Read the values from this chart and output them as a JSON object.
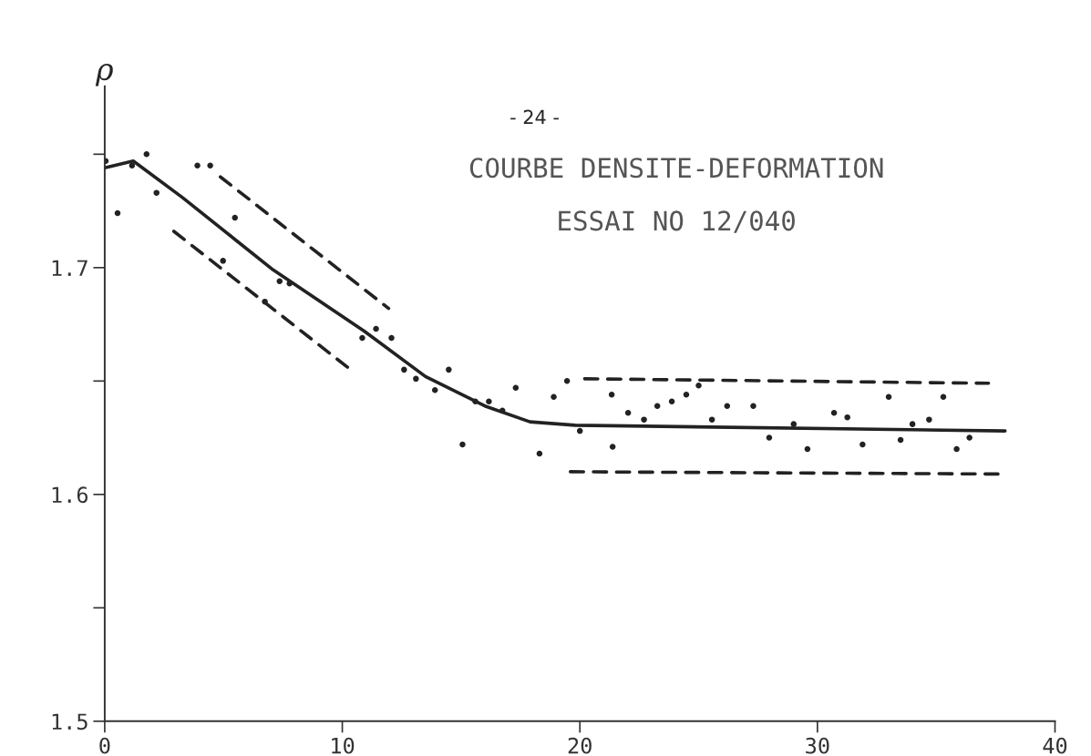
{
  "chart_data": {
    "type": "scatter",
    "title": "COURBE DENSITE-DEFORMATION",
    "subtitle": "ESSAI NO 12/040",
    "ylabel": "ρ",
    "annotations": [
      "- 24 -"
    ],
    "xlim": [
      0,
      40
    ],
    "xticks": [
      0,
      10,
      20,
      30,
      40
    ],
    "ylim": [
      1.5,
      1.78
    ],
    "yticks": [
      1.5,
      {
        "value": 1.55,
        "label": null
      },
      1.6,
      {
        "value": 1.65,
        "label": null
      },
      1.7,
      {
        "value": 1.75,
        "label": null
      }
    ],
    "grid": false,
    "legend": false,
    "series": [
      {
        "color": "#222222",
        "marker": "circle",
        "x": [
          0.04,
          0.54,
          1.15,
          1.76,
          2.18,
          3.9,
          4.44,
          5.48,
          4.98,
          7.36,
          7.78,
          6.74,
          10.84,
          11.42,
          12.07,
          12.6,
          13.1,
          13.9,
          14.48,
          15.6,
          16.17,
          16.74,
          17.3,
          15.06,
          18.3,
          18.9,
          19.46,
          20.0,
          21.34,
          21.38,
          22.03,
          22.7,
          23.26,
          23.87,
          24.48,
          25.0,
          25.56,
          26.2,
          27.3,
          27.97,
          29.0,
          29.58,
          30.7,
          31.26,
          31.9,
          33.0,
          33.5,
          34.0,
          34.7,
          35.3,
          35.86,
          36.4
        ],
        "values": [
          1.747,
          1.724,
          1.745,
          1.75,
          1.733,
          1.745,
          1.745,
          1.722,
          1.703,
          1.694,
          1.693,
          1.685,
          1.669,
          1.673,
          1.669,
          1.655,
          1.651,
          1.646,
          1.655,
          1.641,
          1.641,
          1.637,
          1.647,
          1.622,
          1.618,
          1.643,
          1.65,
          1.628,
          1.644,
          1.621,
          1.636,
          1.633,
          1.639,
          1.641,
          1.644,
          1.648,
          1.633,
          1.639,
          1.639,
          1.625,
          1.631,
          1.62,
          1.636,
          1.634,
          1.622,
          1.643,
          1.624,
          1.631,
          1.633,
          1.643,
          1.62,
          1.625
        ]
      },
      {
        "type": "line",
        "color": "#222222",
        "line_style": "solid",
        "x": [
          0,
          1.2,
          3.26,
          7.09,
          10.92,
          13.5,
          16.0,
          17.9,
          19.8,
          37.9
        ],
        "values": [
          1.744,
          1.747,
          1.731,
          1.699,
          1.672,
          1.652,
          1.639,
          1.632,
          1.6305,
          1.628
        ]
      },
      {
        "type": "line",
        "color": "#222222",
        "line_style": "dashed",
        "x": [
          4.87,
          11.95
        ],
        "values": [
          1.74,
          1.682
        ]
      },
      {
        "type": "line",
        "color": "#222222",
        "line_style": "dashed",
        "x": [
          2.91,
          10.23
        ],
        "values": [
          1.716,
          1.656
        ]
      },
      {
        "type": "line",
        "color": "#222222",
        "line_style": "dashed",
        "x": [
          20.2,
          37.2
        ],
        "values": [
          1.651,
          1.649
        ]
      },
      {
        "type": "line",
        "color": "#222222",
        "line_style": "dashed",
        "x": [
          19.6,
          37.6
        ],
        "values": [
          1.61,
          1.609
        ]
      }
    ]
  }
}
